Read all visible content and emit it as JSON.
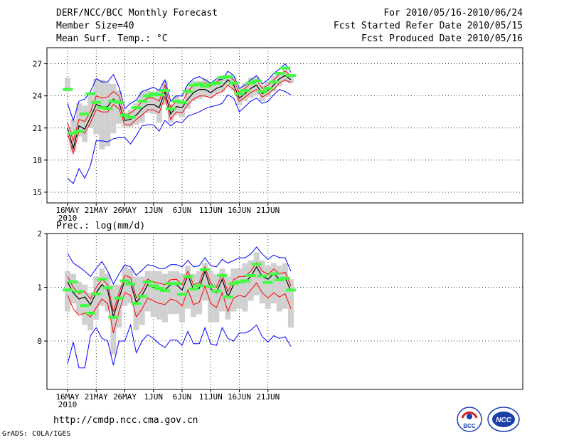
{
  "header": {
    "title": "DERF/NCC/BCC Monthly Forecast",
    "member_size": "Member Size=40",
    "variable": "Mean Surf. Temp.: °C",
    "period": "For 2010/05/16-2010/06/24",
    "start_date": "Fcst Started Refer Date 2010/05/15",
    "produced_date": "Fcst Produced Date 2010/05/16"
  },
  "footer": {
    "url": "http://cmdp.ncc.cma.gov.cn",
    "credit": "GrADS: COLA/IGES",
    "logo_left": "BCC",
    "logo_right": "NCC"
  },
  "colors": {
    "box": "#d0d0d0",
    "mean": "#000000",
    "inner": "#ff0000",
    "outer": "#0000ff",
    "obs": "#40ff40",
    "grid": "#000000"
  },
  "chart_data": [
    {
      "type": "line",
      "title": "Mean Surf. Temp.: °C",
      "xlabel": "",
      "ylabel": "°C",
      "ylim": [
        14,
        28.5
      ],
      "yticks": [
        15,
        18,
        21,
        24,
        27
      ],
      "ytick_labels": [
        "15",
        "18",
        "21",
        "24",
        "27"
      ],
      "xticks": [
        1,
        6,
        11,
        16,
        21,
        26,
        31,
        36
      ],
      "xtick_labels": [
        "16MAY",
        "21MAY",
        "26MAY",
        "1JUN",
        "6JUN",
        "11JUN",
        "16JUN",
        "21JUN"
      ],
      "year_label": "2010",
      "days": [
        1,
        2,
        3,
        4,
        5,
        6,
        7,
        8,
        9,
        10,
        11,
        12,
        13,
        14,
        15,
        16,
        17,
        18,
        19,
        20,
        21,
        22,
        23,
        24,
        25,
        26,
        27,
        28,
        29,
        30,
        31,
        32,
        33,
        34,
        35,
        36,
        37,
        38,
        39,
        40
      ],
      "mean": [
        21.0,
        19.1,
        21.2,
        20.9,
        22.0,
        23.2,
        23.0,
        23.0,
        23.7,
        23.3,
        21.7,
        21.8,
        22.2,
        22.8,
        23.2,
        23.2,
        22.9,
        24.4,
        22.3,
        23.0,
        22.9,
        23.7,
        24.3,
        24.6,
        24.6,
        24.3,
        24.7,
        24.9,
        25.5,
        25.0,
        23.8,
        24.2,
        24.7,
        25.0,
        24.2,
        24.5,
        25.0,
        25.6,
        25.9,
        25.5
      ],
      "inner_upper": [
        21.5,
        19.8,
        21.8,
        21.6,
        22.5,
        24.0,
        23.8,
        23.9,
        24.4,
        24.0,
        22.2,
        22.4,
        22.8,
        23.5,
        23.8,
        23.8,
        23.5,
        25.0,
        22.9,
        23.5,
        23.4,
        24.4,
        25.0,
        25.2,
        25.2,
        24.9,
        25.3,
        25.6,
        25.9,
        25.5,
        24.3,
        24.7,
        25.2,
        25.5,
        24.7,
        25.0,
        25.5,
        26.0,
        26.3,
        25.9
      ],
      "inner_lower": [
        20.5,
        18.6,
        20.7,
        20.5,
        21.5,
        22.7,
        22.5,
        22.5,
        23.2,
        22.8,
        21.3,
        21.3,
        21.8,
        22.2,
        22.7,
        22.7,
        22.4,
        23.9,
        21.8,
        22.5,
        22.4,
        23.2,
        23.7,
        24.0,
        24.0,
        23.8,
        24.2,
        24.4,
        25.0,
        24.6,
        23.5,
        23.9,
        24.3,
        24.6,
        23.9,
        24.2,
        24.6,
        25.2,
        25.5,
        25.2
      ],
      "outer_upper": [
        23.3,
        21.7,
        23.5,
        23.7,
        24.4,
        25.6,
        25.3,
        25.3,
        26.0,
        24.8,
        22.8,
        23.3,
        23.6,
        24.4,
        24.6,
        24.8,
        24.5,
        25.5,
        23.5,
        24.0,
        24.0,
        25.1,
        25.6,
        25.8,
        25.5,
        25.2,
        25.6,
        25.5,
        26.3,
        25.9,
        24.7,
        25.0,
        25.5,
        25.9,
        25.1,
        25.5,
        26.1,
        26.5,
        27.0,
        26.2
      ],
      "outer_lower": [
        16.3,
        15.8,
        17.2,
        16.3,
        17.5,
        19.8,
        19.8,
        19.7,
        20.0,
        20.1,
        20.1,
        19.5,
        20.3,
        21.2,
        21.3,
        21.3,
        20.7,
        21.7,
        21.2,
        21.6,
        21.5,
        22.1,
        22.3,
        22.5,
        22.8,
        23.0,
        23.1,
        23.3,
        24.1,
        23.8,
        22.5,
        23.0,
        23.5,
        23.8,
        23.3,
        23.5,
        24.1,
        24.6,
        24.4,
        24.1
      ],
      "box_upper": [
        25.7,
        21.8,
        23.3,
        23.1,
        24.1,
        25.6,
        25.5,
        25.2,
        25.1,
        24.5,
        22.4,
        22.7,
        23.3,
        24.4,
        24.5,
        24.4,
        24.6,
        25.4,
        23.2,
        24.1,
        23.5,
        24.8,
        25.4,
        25.4,
        25.6,
        25.0,
        25.5,
        25.9,
        26.0,
        25.8,
        24.7,
        25.2,
        25.7,
        25.8,
        25.0,
        25.3,
        25.9,
        26.2,
        26.5,
        26.0
      ],
      "box_lower": [
        24.4,
        18.8,
        20.2,
        19.7,
        21.0,
        20.4,
        19.0,
        19.3,
        20.5,
        21.4,
        21.1,
        21.1,
        21.3,
        21.5,
        22.4,
        22.3,
        21.5,
        23.2,
        21.5,
        22.2,
        22.0,
        22.8,
        23.5,
        23.7,
        23.9,
        23.8,
        24.2,
        24.4,
        24.9,
        24.5,
        23.1,
        23.5,
        23.8,
        24.1,
        23.5,
        23.9,
        24.4,
        24.9,
        25.3,
        25.2
      ],
      "observed": [
        24.6,
        20.5,
        20.7,
        22.3,
        24.2,
        23.4,
        22.9,
        22.8,
        23.5,
        23.4,
        22.2,
        22.0,
        22.9,
        23.5,
        24.0,
        24.2,
        24.1,
        24.5,
        22.8,
        23.5,
        23.4,
        24.4,
        25.0,
        25.1,
        24.9,
        25.1,
        25.2,
        25.7,
        25.8,
        25.2,
        24.2,
        24.5,
        25.2,
        25.4,
        24.4,
        24.7,
        25.3,
        26.1,
        26.6,
        25.9
      ]
    },
    {
      "type": "line",
      "title": "Prec.: log(mm/d)",
      "xlabel": "",
      "ylabel": "log(mm/d)",
      "ylim": [
        -0.9,
        2.0
      ],
      "yticks": [
        0,
        1,
        2
      ],
      "ytick_labels": [
        "0",
        "1",
        "2"
      ],
      "xticks": [
        1,
        6,
        11,
        16,
        21,
        26,
        31,
        36
      ],
      "xtick_labels": [
        "16MAY",
        "21MAY",
        "26MAY",
        "1JUN",
        "6JUN",
        "11JUN",
        "16JUN",
        "21JUN"
      ],
      "year_label": "2010",
      "days": [
        1,
        2,
        3,
        4,
        5,
        6,
        7,
        8,
        9,
        10,
        11,
        12,
        13,
        14,
        15,
        16,
        17,
        18,
        19,
        20,
        21,
        22,
        23,
        24,
        25,
        26,
        27,
        28,
        29,
        30,
        31,
        32,
        33,
        34,
        35,
        36,
        37,
        38,
        39,
        40
      ],
      "mean": [
        1.1,
        0.9,
        0.78,
        0.82,
        0.68,
        0.9,
        1.05,
        0.95,
        0.45,
        0.8,
        1.13,
        1.08,
        0.72,
        0.85,
        1.05,
        1.0,
        0.98,
        0.95,
        1.05,
        1.05,
        0.95,
        1.22,
        0.96,
        0.98,
        1.3,
        0.97,
        0.9,
        1.15,
        0.82,
        1.05,
        1.1,
        1.1,
        1.2,
        1.38,
        1.2,
        1.15,
        1.25,
        1.15,
        1.18,
        0.93
      ],
      "inner_upper": [
        1.2,
        1.0,
        0.88,
        0.92,
        0.78,
        1.0,
        1.15,
        1.05,
        0.55,
        0.9,
        1.22,
        1.18,
        0.8,
        0.95,
        1.15,
        1.1,
        1.08,
        1.05,
        1.14,
        1.15,
        1.05,
        1.3,
        1.05,
        1.08,
        1.38,
        1.07,
        1.0,
        1.24,
        0.92,
        1.14,
        1.2,
        1.2,
        1.3,
        1.46,
        1.3,
        1.24,
        1.34,
        1.25,
        1.28,
        1.03
      ],
      "inner_lower": [
        0.85,
        0.6,
        0.48,
        0.52,
        0.45,
        0.62,
        0.78,
        0.7,
        0.15,
        0.55,
        0.9,
        0.85,
        0.45,
        0.6,
        0.8,
        0.75,
        0.7,
        0.68,
        0.78,
        0.75,
        0.65,
        0.95,
        0.68,
        0.72,
        1.02,
        0.7,
        0.62,
        0.9,
        0.55,
        0.8,
        0.85,
        0.82,
        0.95,
        1.08,
        0.9,
        0.8,
        0.9,
        0.82,
        0.88,
        0.6
      ],
      "outer_upper": [
        1.63,
        1.45,
        1.38,
        1.3,
        1.2,
        1.35,
        1.48,
        1.3,
        1.06,
        1.25,
        1.42,
        1.38,
        1.22,
        1.32,
        1.42,
        1.4,
        1.35,
        1.35,
        1.42,
        1.42,
        1.38,
        1.5,
        1.38,
        1.4,
        1.55,
        1.4,
        1.38,
        1.52,
        1.45,
        1.5,
        1.55,
        1.55,
        1.62,
        1.75,
        1.62,
        1.52,
        1.6,
        1.55,
        1.55,
        1.3
      ],
      "outer_lower": [
        -0.42,
        -0.02,
        -0.5,
        -0.5,
        0.1,
        0.25,
        0.05,
        0.0,
        -0.45,
        0.0,
        0.0,
        0.3,
        -0.22,
        0.0,
        0.12,
        0.05,
        -0.05,
        -0.12,
        0.02,
        0.02,
        -0.08,
        0.18,
        -0.05,
        -0.05,
        0.25,
        -0.05,
        -0.08,
        0.25,
        0.05,
        0.0,
        0.15,
        0.15,
        0.2,
        0.3,
        0.08,
        -0.02,
        0.1,
        0.05,
        0.08,
        -0.1
      ],
      "box_upper": [
        1.3,
        1.25,
        1.1,
        1.05,
        0.9,
        1.2,
        1.35,
        1.25,
        1.05,
        1.05,
        1.4,
        1.35,
        1.2,
        1.2,
        1.3,
        1.3,
        1.3,
        1.25,
        1.3,
        1.3,
        1.25,
        1.4,
        1.25,
        1.3,
        1.45,
        1.3,
        1.25,
        1.35,
        1.2,
        1.35,
        1.35,
        1.45,
        1.5,
        1.65,
        1.5,
        1.4,
        1.45,
        1.4,
        1.45,
        1.15
      ],
      "box_lower": [
        0.55,
        0.7,
        0.5,
        0.3,
        0.2,
        0.4,
        0.65,
        0.55,
        -0.25,
        0.25,
        0.65,
        0.7,
        0.2,
        0.3,
        0.55,
        0.45,
        0.4,
        0.35,
        0.5,
        0.5,
        0.35,
        0.6,
        0.45,
        0.5,
        0.75,
        0.35,
        0.35,
        0.55,
        0.4,
        0.55,
        0.6,
        0.55,
        0.75,
        0.85,
        0.7,
        0.6,
        0.7,
        0.55,
        0.6,
        0.25
      ],
      "observed": [
        0.95,
        1.1,
        0.92,
        0.66,
        0.52,
        0.88,
        1.15,
        0.99,
        0.44,
        0.8,
        1.12,
        1.06,
        0.7,
        0.83,
        1.1,
        1.03,
        0.98,
        0.94,
        1.07,
        1.07,
        0.87,
        1.2,
        0.97,
        1.03,
        1.33,
        1.02,
        0.93,
        1.22,
        0.82,
        1.07,
        1.1,
        1.12,
        1.22,
        1.43,
        1.21,
        1.09,
        1.25,
        1.14,
        1.17,
        0.95
      ]
    }
  ]
}
